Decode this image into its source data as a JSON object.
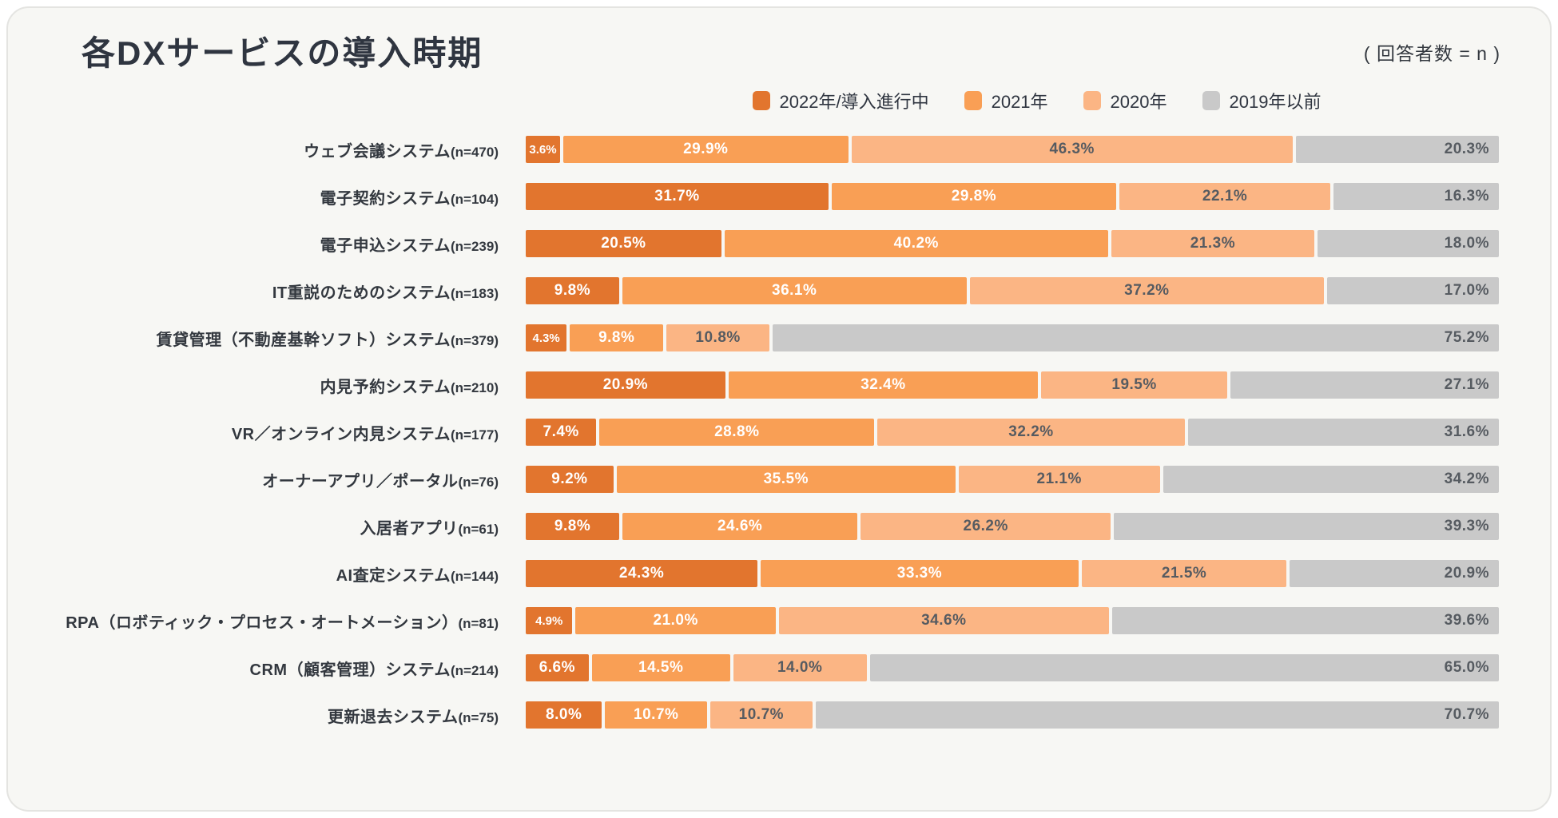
{
  "header": {
    "title": "各DXサービスの導入時期",
    "note": "( 回答者数 = n )"
  },
  "legend": [
    {
      "label": "2022年/導入進行中",
      "color": "#e2752e",
      "text_color": "#ffffff"
    },
    {
      "label": "2021年",
      "color": "#f99f55",
      "text_color": "#ffffff"
    },
    {
      "label": "2020年",
      "color": "#fbb584",
      "text_color": "#565b61"
    },
    {
      "label": "2019年以前",
      "color": "#c9c9c9",
      "text_color": "#565b61"
    }
  ],
  "chart_data": {
    "type": "bar",
    "orientation": "horizontal",
    "stacked": true,
    "unit": "%",
    "xlim": [
      0,
      100
    ],
    "title": "各DXサービスの導入時期",
    "xlabel": "",
    "ylabel": "",
    "legend_position": "top",
    "series_names": [
      "2022年/導入進行中",
      "2021年",
      "2020年",
      "2019年以前"
    ],
    "rows": [
      {
        "category": "ウェブ会議システム",
        "n": 470,
        "values": [
          3.6,
          29.9,
          46.3,
          20.3
        ]
      },
      {
        "category": "電子契約システム",
        "n": 104,
        "values": [
          31.7,
          29.8,
          22.1,
          16.3
        ]
      },
      {
        "category": "電子申込システム",
        "n": 239,
        "values": [
          20.5,
          40.2,
          21.3,
          18.0
        ]
      },
      {
        "category": "IT重説のためのシステム",
        "n": 183,
        "values": [
          9.8,
          36.1,
          37.2,
          17.0
        ]
      },
      {
        "category": "賃貸管理（不動産基幹ソフト）システム",
        "n": 379,
        "values": [
          4.3,
          9.8,
          10.8,
          75.2
        ]
      },
      {
        "category": "内見予約システム",
        "n": 210,
        "values": [
          20.9,
          32.4,
          19.5,
          27.1
        ]
      },
      {
        "category": "VR／オンライン内見システム",
        "n": 177,
        "values": [
          7.4,
          28.8,
          32.2,
          31.6
        ]
      },
      {
        "category": "オーナーアプリ／ポータル",
        "n": 76,
        "values": [
          9.2,
          35.5,
          21.1,
          34.2
        ]
      },
      {
        "category": "入居者アプリ",
        "n": 61,
        "values": [
          9.8,
          24.6,
          26.2,
          39.3
        ]
      },
      {
        "category": "AI査定システム",
        "n": 144,
        "values": [
          24.3,
          33.3,
          21.5,
          20.9
        ]
      },
      {
        "category": "RPA（ロボティック・プロセス・オートメーション）",
        "n": 81,
        "values": [
          4.9,
          21.0,
          34.6,
          39.6
        ]
      },
      {
        "category": "CRM（顧客管理）システム",
        "n": 214,
        "values": [
          6.6,
          14.5,
          14.0,
          65.0
        ]
      },
      {
        "category": "更新退去システム",
        "n": 75,
        "values": [
          8.0,
          10.7,
          10.7,
          70.7
        ]
      }
    ]
  }
}
